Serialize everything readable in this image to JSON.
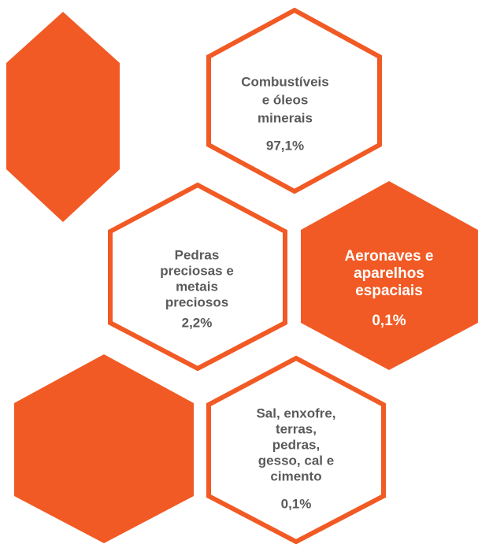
{
  "hexagons": [
    {
      "lines": [
        "Combustíveis",
        "e óleos",
        "minerais"
      ],
      "value": "97,1%"
    },
    {
      "lines": [
        "Pedras",
        "preciosas e",
        "metais",
        "preciosos"
      ],
      "value": "2,2%"
    },
    {
      "lines": [
        "Aeronaves e",
        "aparelhos",
        "espaciais"
      ],
      "value": "0,1%"
    },
    {
      "lines": [
        "Sal, enxofre,",
        "terras,",
        "pedras,",
        "gesso, cal e",
        "cimento"
      ],
      "value": "0,1%"
    }
  ]
}
